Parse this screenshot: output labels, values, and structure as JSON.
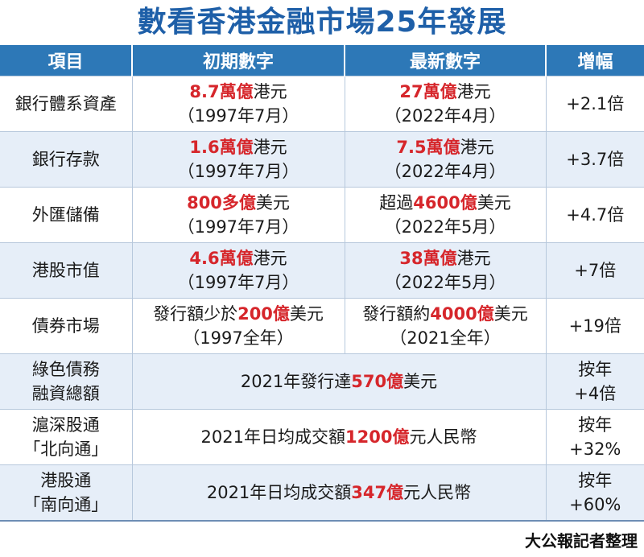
{
  "title": "數看香港金融市場25年發展",
  "headers": [
    "項目",
    "初期數字",
    "最新數字",
    "增幅"
  ],
  "rows": [
    {
      "item": "銀行體系資產",
      "initial": {
        "pre": "",
        "red": "8.7萬億",
        "post": "港元",
        "date": "（1997年7月）"
      },
      "latest": {
        "pre": "",
        "red": "27萬億",
        "post": "港元",
        "date": "（2022年4月）"
      },
      "growth": "+2.1倍"
    },
    {
      "item": "銀行存款",
      "initial": {
        "pre": "",
        "red": "1.6萬億",
        "post": "港元",
        "date": "（1997年7月）"
      },
      "latest": {
        "pre": "",
        "red": "7.5萬億",
        "post": "港元",
        "date": "（2022年4月）"
      },
      "growth": "+3.7倍"
    },
    {
      "item": "外匯儲備",
      "initial": {
        "pre": "",
        "red": "800多億",
        "post": "美元",
        "date": "（1997年7月）"
      },
      "latest": {
        "pre": "超過",
        "red": "4600億",
        "post": "美元",
        "date": "（2022年5月）"
      },
      "growth": "+4.7倍"
    },
    {
      "item": "港股市值",
      "initial": {
        "pre": "",
        "red": "4.6萬億",
        "post": "港元",
        "date": "（1997年7月）"
      },
      "latest": {
        "pre": "",
        "red": "38萬億",
        "post": "港元",
        "date": "（2022年5月）"
      },
      "growth": "+7倍"
    },
    {
      "item": "債券市場",
      "initial": {
        "pre": "發行額少於",
        "red": "200億",
        "post": "美元",
        "date": "（1997全年）"
      },
      "latest": {
        "pre": "發行額約",
        "red": "4000億",
        "post": "美元",
        "date": "（2021全年）"
      },
      "growth": "+19倍"
    }
  ],
  "merged_rows": [
    {
      "item_line1": "綠色債務",
      "item_line2": "融資總額",
      "pre": "2021年發行達",
      "red": "570億",
      "post": "美元",
      "growth_line1": "按年",
      "growth_line2": "+4倍"
    },
    {
      "item_line1": "滬深股通",
      "item_line2": "「北向通」",
      "pre": "2021年日均成交額",
      "red": "1200億",
      "post": "元人民幣",
      "growth_line1": "按年",
      "growth_line2": "+32%"
    },
    {
      "item_line1": "港股通",
      "item_line2": "「南向通」",
      "pre": "2021年日均成交額",
      "red": "347億",
      "post": "元人民幣",
      "growth_line1": "按年",
      "growth_line2": "+60%"
    }
  ],
  "footer": "大公報記者整理",
  "colors": {
    "title": "#1e5fa8",
    "header_bg": "#2d78b7",
    "highlight": "#d6262b",
    "stripe": "#e6eef8"
  }
}
